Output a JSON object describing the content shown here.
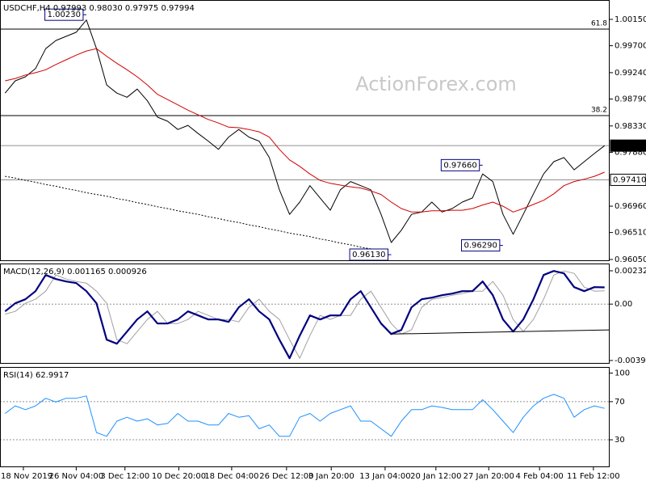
{
  "chart_data": [
    {
      "type": "line",
      "title": "USDCHF,H4  0.97993 0.98030 0.97975 0.97994",
      "watermark": "ActionForex.com",
      "xlim": [
        0,
        60
      ],
      "ylim": [
        0.96022,
        1.00481
      ],
      "yticks": [
        {
          "value": 1.0015,
          "label": "1.00150"
        },
        {
          "value": 0.997,
          "label": "0.99700"
        },
        {
          "value": 0.9924,
          "label": "0.99240"
        },
        {
          "value": 0.9879,
          "label": "0.98790"
        },
        {
          "value": 0.9833,
          "label": "0.98330"
        },
        {
          "value": 0.9788,
          "label": "0.97880"
        },
        {
          "value": 0.9696,
          "label": "0.96960"
        },
        {
          "value": 0.9651,
          "label": "0.96510"
        },
        {
          "value": 0.9605,
          "label": "0.96050"
        }
      ],
      "series": [
        {
          "name": "USDCHF",
          "color": "#000000",
          "width": 1,
          "values": [
            0.9889,
            0.991,
            0.9917,
            0.9931,
            0.9965,
            0.9979,
            0.9986,
            0.9993,
            1.0014,
            0.9965,
            0.9903,
            0.9889,
            0.9882,
            0.9896,
            0.9876,
            0.9848,
            0.9841,
            0.9827,
            0.9834,
            0.982,
            0.9807,
            0.9793,
            0.9814,
            0.9827,
            0.9814,
            0.9807,
            0.9779,
            0.9724,
            0.9682,
            0.9703,
            0.9731,
            0.971,
            0.9689,
            0.9724,
            0.9738,
            0.9731,
            0.9724,
            0.9682,
            0.9634,
            0.9655,
            0.9682,
            0.9686,
            0.9703,
            0.9686,
            0.9692,
            0.9703,
            0.971,
            0.9751,
            0.9738,
            0.9682,
            0.9648,
            0.9682,
            0.9717,
            0.9751,
            0.9772,
            0.9779,
            0.9758,
            0.9772,
            0.9786,
            0.97994
          ]
        },
        {
          "name": "MA",
          "color": "#d00000",
          "width": 1,
          "values": [
            0.991,
            0.9914,
            0.992,
            0.9924,
            0.9929,
            0.9938,
            0.9946,
            0.9954,
            0.9961,
            0.9965,
            0.9952,
            0.994,
            0.9929,
            0.9917,
            0.9903,
            0.9887,
            0.9878,
            0.9869,
            0.986,
            0.9852,
            0.9844,
            0.9838,
            0.9831,
            0.983,
            0.9827,
            0.9823,
            0.9814,
            0.9793,
            0.9775,
            0.9764,
            0.9751,
            0.974,
            0.9735,
            0.9732,
            0.9729,
            0.9727,
            0.9722,
            0.9716,
            0.9703,
            0.9692,
            0.9686,
            0.9686,
            0.9688,
            0.9688,
            0.9689,
            0.9689,
            0.9692,
            0.9698,
            0.9703,
            0.9696,
            0.9686,
            0.9692,
            0.9699,
            0.9706,
            0.9717,
            0.9731,
            0.9738,
            0.9742,
            0.9747,
            0.9754
          ]
        },
        {
          "name": "MA long",
          "color": "#000000",
          "width": 1,
          "dash": true,
          "values": [
            0.9747,
            0.9744,
            0.974,
            0.9737,
            0.9733,
            0.973,
            0.9726,
            0.9723,
            0.9719,
            0.9716,
            0.9713,
            0.9709,
            0.9706,
            0.9702,
            0.9699,
            0.9695,
            0.9692,
            0.9688,
            0.9685,
            0.9682,
            0.9678,
            0.9675,
            0.9671,
            0.9668,
            0.9664,
            0.9661,
            0.9657,
            0.9654,
            0.965,
            0.9647,
            0.9644,
            0.964,
            0.9637,
            0.9633,
            0.963,
            0.9626,
            0.9623,
            0.9619,
            null,
            null,
            null,
            null,
            null,
            null,
            null,
            null,
            null,
            null,
            null,
            null,
            null,
            null,
            null,
            null,
            null,
            null,
            null,
            null,
            null,
            null
          ]
        }
      ],
      "levels": [
        {
          "value": 0.99984,
          "label": "61.8"
        },
        {
          "value": 0.98507,
          "label": "38.2"
        }
      ],
      "price_labels": [
        {
          "value": 0.97994,
          "label": "0.97994",
          "style": "dark"
        },
        {
          "value": 0.9741,
          "label": "0.97410",
          "style": "light"
        }
      ],
      "annotations": [
        {
          "x": 8.5,
          "value": 1.0023,
          "label": "1.00230"
        },
        {
          "x": 47.5,
          "value": 0.9766,
          "label": "0.97660"
        },
        {
          "x": 49.5,
          "value": 0.9629,
          "label": "0.96290"
        },
        {
          "x": 38.5,
          "value": 0.9613,
          "label": "0.96130"
        }
      ]
    },
    {
      "type": "line",
      "title": "MACD(12,26,9) 0.001165 0.000926",
      "xlim": [
        0,
        60
      ],
      "ylim": [
        -0.00416,
        0.00283
      ],
      "yticks": [
        {
          "value": 0.002322,
          "label": "0.002322"
        },
        {
          "value": 0,
          "label": "0.00"
        },
        {
          "value": -0.003932,
          "label": "-0.003932"
        }
      ],
      "grid_at": [
        0
      ],
      "series": [
        {
          "name": "Signal",
          "color": "#a0a0a0",
          "width": 1,
          "values": [
            -0.0007,
            -0.000507,
            5.6e-05,
            0.000338,
            0.000901,
            0.002028,
            0.001747,
            0.001578,
            0.001465,
            0.000901,
            5.6e-05,
            -0.002479,
            -0.002761,
            -0.001916,
            -0.001071,
            -0.000507,
            -0.001352,
            -0.001352,
            -0.001071,
            -0.000507,
            -0.000789,
            -0.001071,
            -0.001071,
            -0.00124,
            -0.000225,
            0.000338,
            -0.000507,
            -0.001071,
            -0.002479,
            -0.003775,
            -0.002197,
            -0.000789,
            -0.001071,
            -0.000789,
            -0.000789,
            0.000338,
            0.000901,
            -0.000225,
            -0.001352,
            -0.002085,
            -0.001803,
            -0.000225,
            0.000338,
            0.000451,
            0.00062,
            0.000732,
            0.000901,
            0.000901,
            0.001578,
            0.00062,
            -0.001071,
            -0.001916,
            -0.001071,
            0.000338,
            0.002028,
            0.00231,
            0.002141,
            0.001183,
            0.000901,
            0.000926
          ]
        },
        {
          "name": "MACD",
          "color": "#000080",
          "width": 2.2,
          "values": [
            -0.000507,
            5.6e-05,
            0.000338,
            0.000901,
            0.002028,
            0.001747,
            0.001578,
            0.001465,
            0.000901,
            5.6e-05,
            -0.002479,
            -0.002761,
            -0.001916,
            -0.001071,
            -0.000507,
            -0.001352,
            -0.001352,
            -0.001071,
            -0.000507,
            -0.000789,
            -0.001071,
            -0.001071,
            -0.00124,
            -0.000225,
            0.000338,
            -0.000507,
            -0.001071,
            -0.002479,
            -0.003775,
            -0.002197,
            -0.000789,
            -0.001071,
            -0.000789,
            -0.000789,
            0.000338,
            0.000901,
            -0.000225,
            -0.001352,
            -0.002085,
            -0.001803,
            -0.000225,
            0.000338,
            0.000451,
            0.00062,
            0.000732,
            0.000901,
            0.000901,
            0.001578,
            0.00062,
            -0.001071,
            -0.001916,
            -0.001071,
            0.000338,
            0.002028,
            0.00231,
            0.002141,
            0.001183,
            0.000901,
            0.001183,
            0.001165
          ]
        }
      ],
      "trendline": {
        "x": [
          38.5,
          60
        ],
        "y": [
          -0.00209,
          -0.0018
        ]
      }
    },
    {
      "type": "line",
      "title": "RSI(14) 62.9917",
      "xlim": [
        0,
        60
      ],
      "ylim": [
        1.2,
        106.4
      ],
      "yticks": [
        100,
        70,
        30
      ],
      "grid_at": [
        70,
        30
      ],
      "series": [
        {
          "name": "RSI",
          "color": "#1e90ff",
          "width": 1,
          "values": [
            57.6,
            65.6,
            61.6,
            65.6,
            73.6,
            69.6,
            73.6,
            73.6,
            76,
            37.6,
            33.6,
            49.6,
            53.6,
            49.6,
            52,
            45.6,
            47.2,
            57.6,
            49.6,
            49.6,
            45.6,
            45.6,
            57.6,
            53.6,
            55.2,
            41.6,
            45.6,
            33.6,
            33.6,
            53.6,
            57.6,
            49.6,
            57.6,
            61.6,
            65.6,
            49.6,
            49.6,
            41.6,
            33.6,
            49.6,
            61.6,
            61.6,
            65.6,
            64,
            61.6,
            61.6,
            61.6,
            72,
            61.6,
            49.6,
            37.6,
            53.6,
            65.6,
            73.6,
            77.6,
            73.6,
            53.6,
            61.6,
            65.6,
            62.9917
          ]
        }
      ],
      "xticks": [
        {
          "value": 2.3,
          "label": "18 Nov 2019"
        },
        {
          "value": 7.5,
          "label": "26 Nov 04:00"
        },
        {
          "value": 12.3,
          "label": "3 Dec 12:00"
        },
        {
          "value": 17.6,
          "label": "10 Dec 20:00"
        },
        {
          "value": 22.8,
          "label": "18 Dec 04:00"
        },
        {
          "value": 28.2,
          "label": "26 Dec 12:00"
        },
        {
          "value": 32.6,
          "label": "3 Jan 20:00"
        },
        {
          "value": 37.9,
          "label": "13 Jan 04:00"
        },
        {
          "value": 42.9,
          "label": "20 Jan 12:00"
        },
        {
          "value": 48.1,
          "label": "27 Jan 20:00"
        },
        {
          "value": 53.1,
          "label": "4 Feb 04:00"
        },
        {
          "value": 58.4,
          "label": "11 Feb 12:00"
        }
      ]
    }
  ]
}
